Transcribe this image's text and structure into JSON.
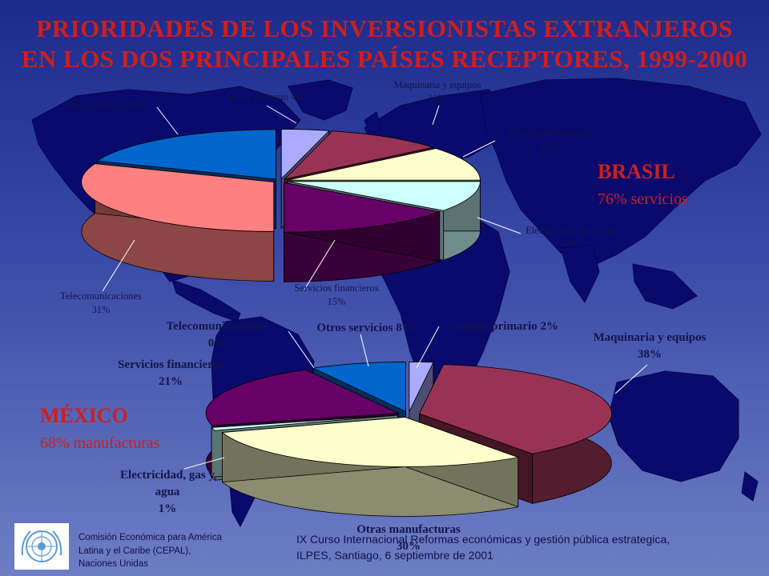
{
  "title": {
    "line1": "PRIORIDADES DE LOS INVERSIONISTAS EXTRANJEROS",
    "line2": "EN LOS DOS PRINCIPALES PAÍSES RECEPTORES, 1999-2000"
  },
  "colors": {
    "background_top": "#1c2a8c",
    "background_bottom": "#6e7ec4",
    "map_land": "#0a0a6e",
    "title_red": "#cc1f1f",
    "label_text": "#14144a"
  },
  "brasil": {
    "name": "BRASIL",
    "subtitle": "76% servicios"
  },
  "mexico": {
    "name": "MÉXICO",
    "subtitle": "68% manufacturas"
  },
  "chart_data": [
    {
      "type": "pie",
      "country": "BRASIL",
      "style": "3d-exploded",
      "slices": [
        {
          "label": "Sector primario",
          "pct_text": "4%",
          "value": 4,
          "color": "#aaaaff"
        },
        {
          "label": "Maquinaria y equipos",
          "pct_text": "10%",
          "value": 10,
          "color": "#993355"
        },
        {
          "label": "Otras manufacturas",
          "pct_text": "11%",
          "value": 11,
          "color": "#ffffcc"
        },
        {
          "label": "Electricidad, gas y agu",
          "pct_text": "10%",
          "value": 10,
          "color": "#ccffff"
        },
        {
          "label": "Servicios financieros",
          "pct_text": "15%",
          "value": 15,
          "color": "#660066"
        },
        {
          "label": "Telecomunicaciones",
          "pct_text": "31%",
          "value": 31,
          "color": "#ff8080"
        },
        {
          "label": "Otros servicios",
          "pct_text": "19%",
          "value": 19,
          "color": "#0066cc"
        }
      ]
    },
    {
      "type": "pie",
      "country": "MÉXICO",
      "style": "3d-exploded",
      "slices": [
        {
          "label": "Sector primario",
          "pct_text": "2%",
          "value": 2,
          "color": "#aaaaff"
        },
        {
          "label": "Maquinaria y equipos",
          "pct_text": "38%",
          "value": 38,
          "color": "#993355"
        },
        {
          "label": "Otras manufacturas",
          "pct_text": "30%",
          "value": 30,
          "color": "#ffffcc"
        },
        {
          "label": "Electricidad, gas y agua",
          "pct_text": "1%",
          "value": 1,
          "color": "#ccffff"
        },
        {
          "label": "Servicios financieros",
          "pct_text": "21%",
          "value": 21,
          "color": "#660066"
        },
        {
          "label": "Telecomunicaciones",
          "pct_text": "0%",
          "value": 0,
          "color": "#ff8080"
        },
        {
          "label": "Otros servicios",
          "pct_text": "8%",
          "value": 8,
          "color": "#0066cc"
        }
      ]
    }
  ],
  "footer": {
    "org_line1": "Comisión Económica para América",
    "org_line2": "Latina y el Caribe (CEPAL),",
    "org_line3": "Naciones Unidas",
    "course_line1": "IX Curso Internacional Reformas económicas y gestión pública estrategica,",
    "course_line2": "ILPES, Santiago, 6 septiembre de 2001"
  }
}
